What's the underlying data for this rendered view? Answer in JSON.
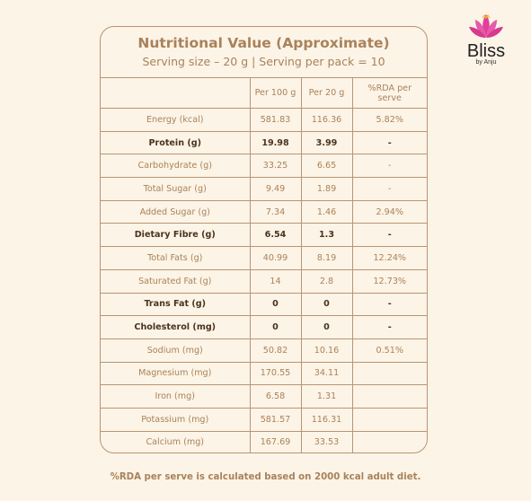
{
  "brand": {
    "name": "Bliss",
    "tagline": "by Anju"
  },
  "title": "Nutritional Value (Approximate)",
  "subtitle": "Serving size – 20 g | Serving per pack = 10",
  "table": {
    "headers": [
      "",
      "Per 100 g",
      "Per 20 g",
      "%RDA per serve"
    ],
    "rows": [
      {
        "name": "Energy (kcal)",
        "per100": "581.83",
        "per20": "116.36",
        "rda": "5.82%",
        "bold": false
      },
      {
        "name": "Protein (g)",
        "per100": "19.98",
        "per20": "3.99",
        "rda": "-",
        "bold": true
      },
      {
        "name": "Carbohydrate (g)",
        "per100": "33.25",
        "per20": "6.65",
        "rda": "-",
        "bold": false
      },
      {
        "name": "Total Sugar (g)",
        "per100": "9.49",
        "per20": "1.89",
        "rda": "-",
        "bold": false
      },
      {
        "name": "Added Sugar (g)",
        "per100": "7.34",
        "per20": "1.46",
        "rda": "2.94%",
        "bold": false
      },
      {
        "name": "Dietary Fibre (g)",
        "per100": "6.54",
        "per20": "1.3",
        "rda": "-",
        "bold": true
      },
      {
        "name": "Total Fats (g)",
        "per100": "40.99",
        "per20": "8.19",
        "rda": "12.24%",
        "bold": false
      },
      {
        "name": "Saturated Fat (g)",
        "per100": "14",
        "per20": "2.8",
        "rda": "12.73%",
        "bold": false
      },
      {
        "name": "Trans Fat (g)",
        "per100": "0",
        "per20": "0",
        "rda": "-",
        "bold": true
      },
      {
        "name": "Cholesterol (mg)",
        "per100": "0",
        "per20": "0",
        "rda": "-",
        "bold": true
      },
      {
        "name": "Sodium (mg)",
        "per100": "50.82",
        "per20": "10.16",
        "rda": "0.51%",
        "bold": false
      },
      {
        "name": "Magnesium (mg)",
        "per100": "170.55",
        "per20": "34.11",
        "rda": "",
        "bold": false
      },
      {
        "name": "Iron (mg)",
        "per100": "6.58",
        "per20": "1.31",
        "rda": "",
        "bold": false
      },
      {
        "name": "Potassium (mg)",
        "per100": "581.57",
        "per20": "116.31",
        "rda": "",
        "bold": false
      },
      {
        "name": "Calcium (mg)",
        "per100": "167.69",
        "per20": "33.53",
        "rda": "",
        "bold": false
      }
    ]
  },
  "footnote": "%RDA per serve is calculated based on 2000 kcal adult diet.",
  "colors": {
    "accent": "#a9825b",
    "border": "#b89575",
    "bold_text": "#4a3320",
    "background": "#fcf4e6",
    "lotus": "#e0409a"
  },
  "icons": {
    "logo": "lotus-icon"
  }
}
